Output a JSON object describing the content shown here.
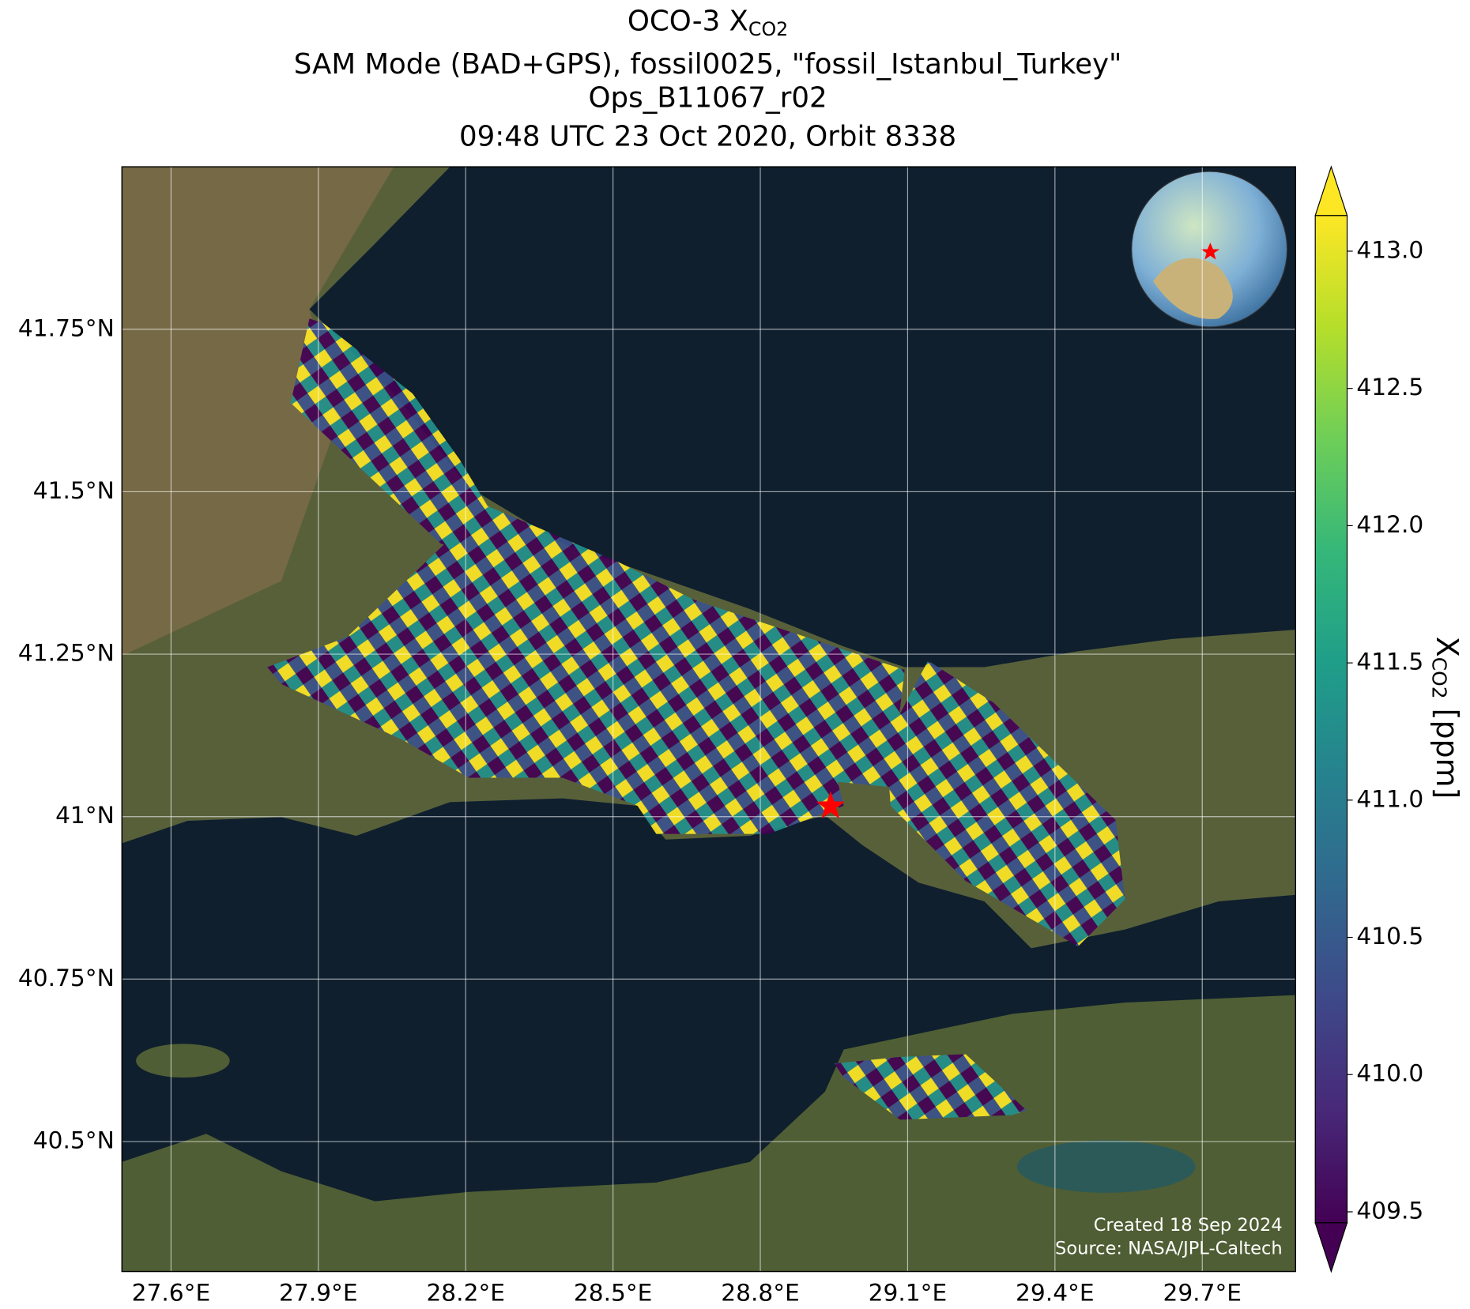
{
  "chart_data": {
    "type": "map",
    "title": [
      "OCO-3 X",
      "SAM Mode (BAD+GPS), fossil0025, \"fossil_Istanbul_Turkey\"",
      "Ops_B11067_r02",
      "09:48 UTC 23 Oct 2020, Orbit 8338"
    ],
    "title_subscript": "CO2",
    "xlim": [
      27.5,
      29.89
    ],
    "ylim": [
      40.3,
      42.0
    ],
    "xticks": [
      {
        "value": 27.6,
        "label": "27.6°E"
      },
      {
        "value": 27.9,
        "label": "27.9°E"
      },
      {
        "value": 28.2,
        "label": "28.2°E"
      },
      {
        "value": 28.5,
        "label": "28.5°E"
      },
      {
        "value": 28.8,
        "label": "28.8°E"
      },
      {
        "value": 29.1,
        "label": "29.1°E"
      },
      {
        "value": 29.4,
        "label": "29.4°E"
      },
      {
        "value": 29.7,
        "label": "29.7°E"
      }
    ],
    "yticks": [
      {
        "value": 40.5,
        "label": "40.5°N"
      },
      {
        "value": 40.75,
        "label": "40.75°N"
      },
      {
        "value": 41,
        "label": "41°N"
      },
      {
        "value": 41.25,
        "label": "41.25°N"
      },
      {
        "value": 41.5,
        "label": "41.5°N"
      },
      {
        "value": 41.75,
        "label": "41.75°N"
      }
    ],
    "grid": true,
    "target": {
      "lon": 28.943,
      "lat": 41.016,
      "color": "#ff0000"
    },
    "colorbar": {
      "colormap": "viridis",
      "extend": "both",
      "clim": [
        409.46,
        413.13
      ],
      "ticks": [
        {
          "value": 409.5,
          "label": "409.5"
        },
        {
          "value": 410,
          "label": "410.0"
        },
        {
          "value": 410.5,
          "label": "410.5"
        },
        {
          "value": 411,
          "label": "411.0"
        },
        {
          "value": 411.5,
          "label": "411.5"
        },
        {
          "value": 412,
          "label": "412.0"
        },
        {
          "value": 412.5,
          "label": "412.5"
        },
        {
          "value": 413,
          "label": "413.0"
        }
      ],
      "label": "X",
      "label_subscript": "CO2",
      "label_unit": " [ppm]"
    },
    "credits": [
      "Created 18 Sep 2024",
      "Source: NASA/JPL-Caltech"
    ]
  }
}
